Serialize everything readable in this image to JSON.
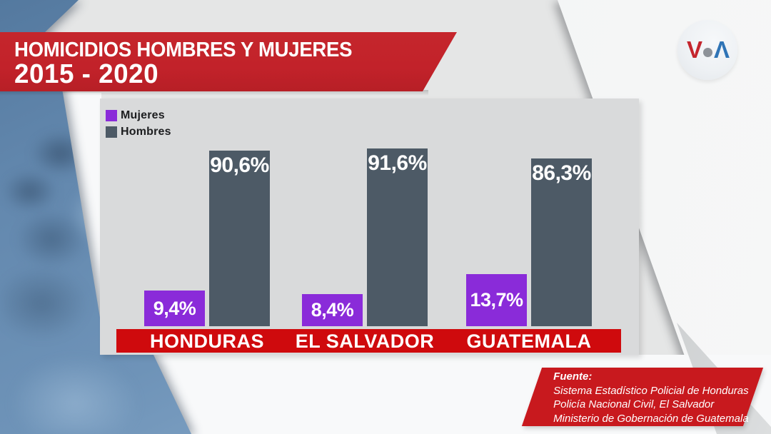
{
  "banner": {
    "title_line1": "HOMICIDIOS HOMBRES Y MUJERES",
    "title_line2": "2015 - 2020"
  },
  "logo": {
    "name": "VOA",
    "letter_v": "V",
    "letter_a": "Λ"
  },
  "legend": [
    {
      "label": "Mujeres",
      "color": "#8a2bd9"
    },
    {
      "label": "Hombres",
      "color": "#4d5a66"
    }
  ],
  "chart_data": {
    "type": "bar",
    "title": "HOMICIDIOS HOMBRES Y MUJERES 2015 - 2020",
    "categories": [
      "HONDURAS",
      "EL SALVADOR",
      "GUATEMALA"
    ],
    "series": [
      {
        "name": "Mujeres",
        "color": "#8a2bd9",
        "values": [
          9.4,
          8.4,
          13.7
        ],
        "labels": [
          "9,4%",
          "8,4%",
          "13,7%"
        ]
      },
      {
        "name": "Hombres",
        "color": "#4d5a66",
        "values": [
          90.6,
          91.6,
          86.3
        ],
        "labels": [
          "90,6%",
          "91,6%",
          "86,3%"
        ]
      }
    ],
    "value_format": "percent with comma decimal",
    "ylim": [
      0,
      100
    ],
    "grid": false,
    "legend_position": "top-left",
    "category_axis_style": "red band with white labels"
  },
  "source": {
    "heading": "Fuente:",
    "lines": [
      "Sistema Estadístico Policial de Honduras",
      "Policía Nacional Civil, El Salvador",
      "Ministerio de Gobernación de Guatemala"
    ]
  },
  "colors": {
    "banner_red": "#c2222a",
    "axis_band_red": "#cf0a0d",
    "mujeres_purple": "#8a2bd9",
    "hombres_slate": "#4d5a66",
    "photo_blue": "#6e93b8",
    "panel_gray": "#d9dadb",
    "background_gray": "#e5e6e6",
    "plane_white": "#f6f7f7"
  }
}
